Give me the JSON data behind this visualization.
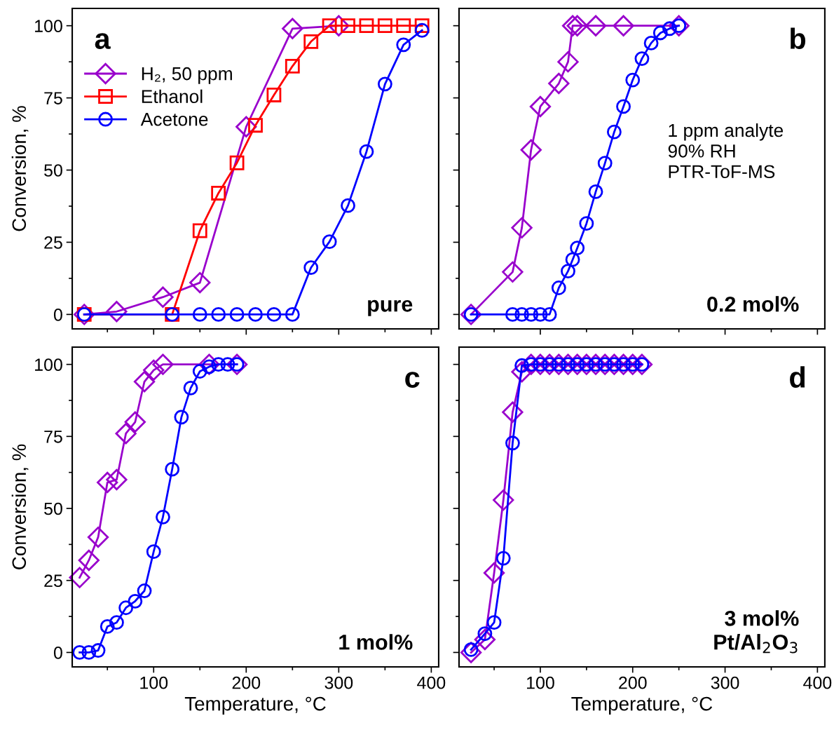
{
  "chart_data": [
    {
      "type": "line",
      "ylabel": "Conversion, %",
      "legend": "left",
      "tick_labels": "y",
      "grid": false,
      "line_style": "solid",
      "annotations": [
        "a",
        "pure"
      ],
      "xlim": [
        12,
        408
      ],
      "xticks": [
        {
          "value": 50,
          "label": null
        },
        100,
        {
          "value": 150,
          "label": null
        },
        200,
        {
          "value": 250,
          "label": null
        },
        300,
        {
          "value": 350,
          "label": null
        },
        400
      ],
      "ylim": [
        -5,
        106
      ],
      "yticks": [
        0,
        {
          "value": 12.5,
          "label": null
        },
        25,
        {
          "value": 37.5,
          "label": null
        },
        50,
        {
          "value": 62.5,
          "label": null
        },
        75,
        {
          "value": 87.5,
          "label": null
        },
        100
      ],
      "series": [
        {
          "name": "H₂, 50 ppm",
          "color": "#9900cc",
          "marker": "diamond",
          "x": [
            25,
            60,
            110,
            150,
            200,
            250,
            300
          ],
          "values": [
            0,
            1,
            6,
            11,
            65,
            99,
            100
          ]
        },
        {
          "name": "Ethanol",
          "color": "#ff0000",
          "marker": "square",
          "x": [
            25,
            120,
            150,
            170,
            190,
            210,
            230,
            250,
            270,
            290,
            310,
            330,
            350,
            370,
            390
          ],
          "values": [
            0,
            0,
            29,
            42,
            52.5,
            65.5,
            76,
            86,
            94.5,
            100,
            100,
            100,
            100,
            100,
            100
          ]
        },
        {
          "name": "Acetone",
          "color": "#0000ff",
          "marker": "circle",
          "x": [
            25,
            120,
            150,
            170,
            190,
            210,
            230,
            250,
            270,
            290,
            310,
            330,
            350,
            370,
            390
          ],
          "values": [
            0,
            0,
            0,
            0,
            0,
            0,
            0,
            0,
            16.2,
            25.2,
            37.7,
            56.4,
            79.8,
            93.4,
            98.4
          ]
        }
      ]
    },
    {
      "type": "line",
      "tick_labels": false,
      "grid": false,
      "line_style": "solid",
      "annotations": [
        "b",
        "0.2 mol%",
        "1 ppm analyte\n90% RH\nPTR-ToF-MS"
      ],
      "xlim": [
        12,
        408
      ],
      "xticks": [
        {
          "value": 50,
          "label": null
        },
        100,
        {
          "value": 150,
          "label": null
        },
        200,
        {
          "value": 250,
          "label": null
        },
        300,
        {
          "value": 350,
          "label": null
        },
        400
      ],
      "ylim": [
        -5,
        106
      ],
      "yticks": [
        0,
        {
          "value": 12.5,
          "label": null
        },
        25,
        {
          "value": 37.5,
          "label": null
        },
        50,
        {
          "value": 62.5,
          "label": null
        },
        75,
        {
          "value": 87.5,
          "label": null
        },
        100
      ],
      "series": [
        {
          "color": "#9900cc",
          "marker": "diamond",
          "x": [
            25,
            70,
            80,
            90,
            100,
            120,
            130,
            135,
            140,
            160,
            190,
            250
          ],
          "values": [
            0,
            14.7,
            30,
            57,
            72,
            80,
            87.5,
            100,
            100,
            100,
            100,
            100
          ]
        },
        {
          "color": "#0000ff",
          "marker": "circle",
          "x": [
            25,
            70,
            80,
            90,
            100,
            110,
            120,
            130,
            135,
            140,
            150,
            160,
            170,
            180,
            190,
            200,
            210,
            220,
            230,
            240,
            250
          ],
          "values": [
            0,
            0,
            0,
            0,
            0,
            0,
            9.2,
            15,
            19,
            23,
            31.5,
            42.5,
            52.4,
            63.2,
            72,
            81.2,
            88.6,
            94,
            97.5,
            99,
            100
          ]
        }
      ]
    },
    {
      "type": "line",
      "xlabel": "Temperature, °C",
      "ylabel": "Conversion, %",
      "grid": false,
      "line_style": "solid",
      "annotations": [
        "c",
        "1 mol%"
      ],
      "xlim": [
        12,
        408
      ],
      "xticks": [
        {
          "value": 50,
          "label": null
        },
        100,
        {
          "value": 150,
          "label": null
        },
        200,
        {
          "value": 250,
          "label": null
        },
        300,
        {
          "value": 350,
          "label": null
        },
        400
      ],
      "ylim": [
        -5,
        106
      ],
      "yticks": [
        0,
        {
          "value": 12.5,
          "label": null
        },
        25,
        {
          "value": 37.5,
          "label": null
        },
        50,
        {
          "value": 62.5,
          "label": null
        },
        75,
        {
          "value": 87.5,
          "label": null
        },
        100
      ],
      "series": [
        {
          "color": "#9900cc",
          "marker": "diamond",
          "x": [
            20,
            30,
            40,
            50,
            60,
            70,
            80,
            90,
            100,
            110,
            160,
            190
          ],
          "values": [
            26,
            32,
            40,
            59,
            60,
            76,
            80,
            94,
            98,
            100,
            100,
            100
          ]
        },
        {
          "color": "#0000ff",
          "marker": "circle",
          "x": [
            20,
            30,
            40,
            50,
            60,
            70,
            80,
            90,
            100,
            110,
            120,
            130,
            140,
            150,
            160,
            170,
            180,
            190
          ],
          "values": [
            0,
            0,
            0.7,
            9,
            10.4,
            15.5,
            17.8,
            21.4,
            35,
            47,
            63.6,
            81.7,
            91.8,
            97.6,
            99.2,
            100,
            100,
            100
          ]
        }
      ]
    },
    {
      "type": "line",
      "xlabel": "Temperature, °C",
      "tick_labels": "x",
      "grid": false,
      "line_style": "solid",
      "annotations": [
        "d",
        "3 mol%\nPt/Al$_{2}$O$_{3}$"
      ],
      "xlim": [
        12,
        408
      ],
      "xticks": [
        {
          "value": 50,
          "label": null
        },
        100,
        {
          "value": 150,
          "label": null
        },
        200,
        {
          "value": 250,
          "label": null
        },
        300,
        {
          "value": 350,
          "label": null
        },
        400
      ],
      "ylim": [
        -5,
        106
      ],
      "yticks": [
        0,
        {
          "value": 12.5,
          "label": null
        },
        25,
        {
          "value": 37.5,
          "label": null
        },
        50,
        {
          "value": 62.5,
          "label": null
        },
        75,
        {
          "value": 87.5,
          "label": null
        },
        100
      ],
      "series": [
        {
          "color": "#9900cc",
          "marker": "diamond",
          "x": [
            25,
            40,
            50,
            60,
            70,
            80,
            90,
            100,
            110,
            120,
            130,
            140,
            150,
            160,
            170,
            180,
            190,
            200,
            210
          ],
          "values": [
            0,
            4.5,
            27.6,
            52.9,
            83.4,
            97.4,
            100,
            100,
            100,
            100,
            100,
            100,
            100,
            100,
            100,
            100,
            100,
            100,
            100
          ]
        },
        {
          "color": "#0000ff",
          "marker": "circle",
          "x": [
            25,
            40,
            50,
            60,
            70,
            80,
            90,
            100,
            110,
            120,
            130,
            140,
            150,
            160,
            170,
            180,
            190,
            200,
            210
          ],
          "values": [
            1,
            6.5,
            10.4,
            32.7,
            72.7,
            99.6,
            100,
            100,
            100,
            100,
            100,
            100,
            100,
            100,
            100,
            100,
            100,
            100,
            100
          ]
        }
      ]
    }
  ]
}
